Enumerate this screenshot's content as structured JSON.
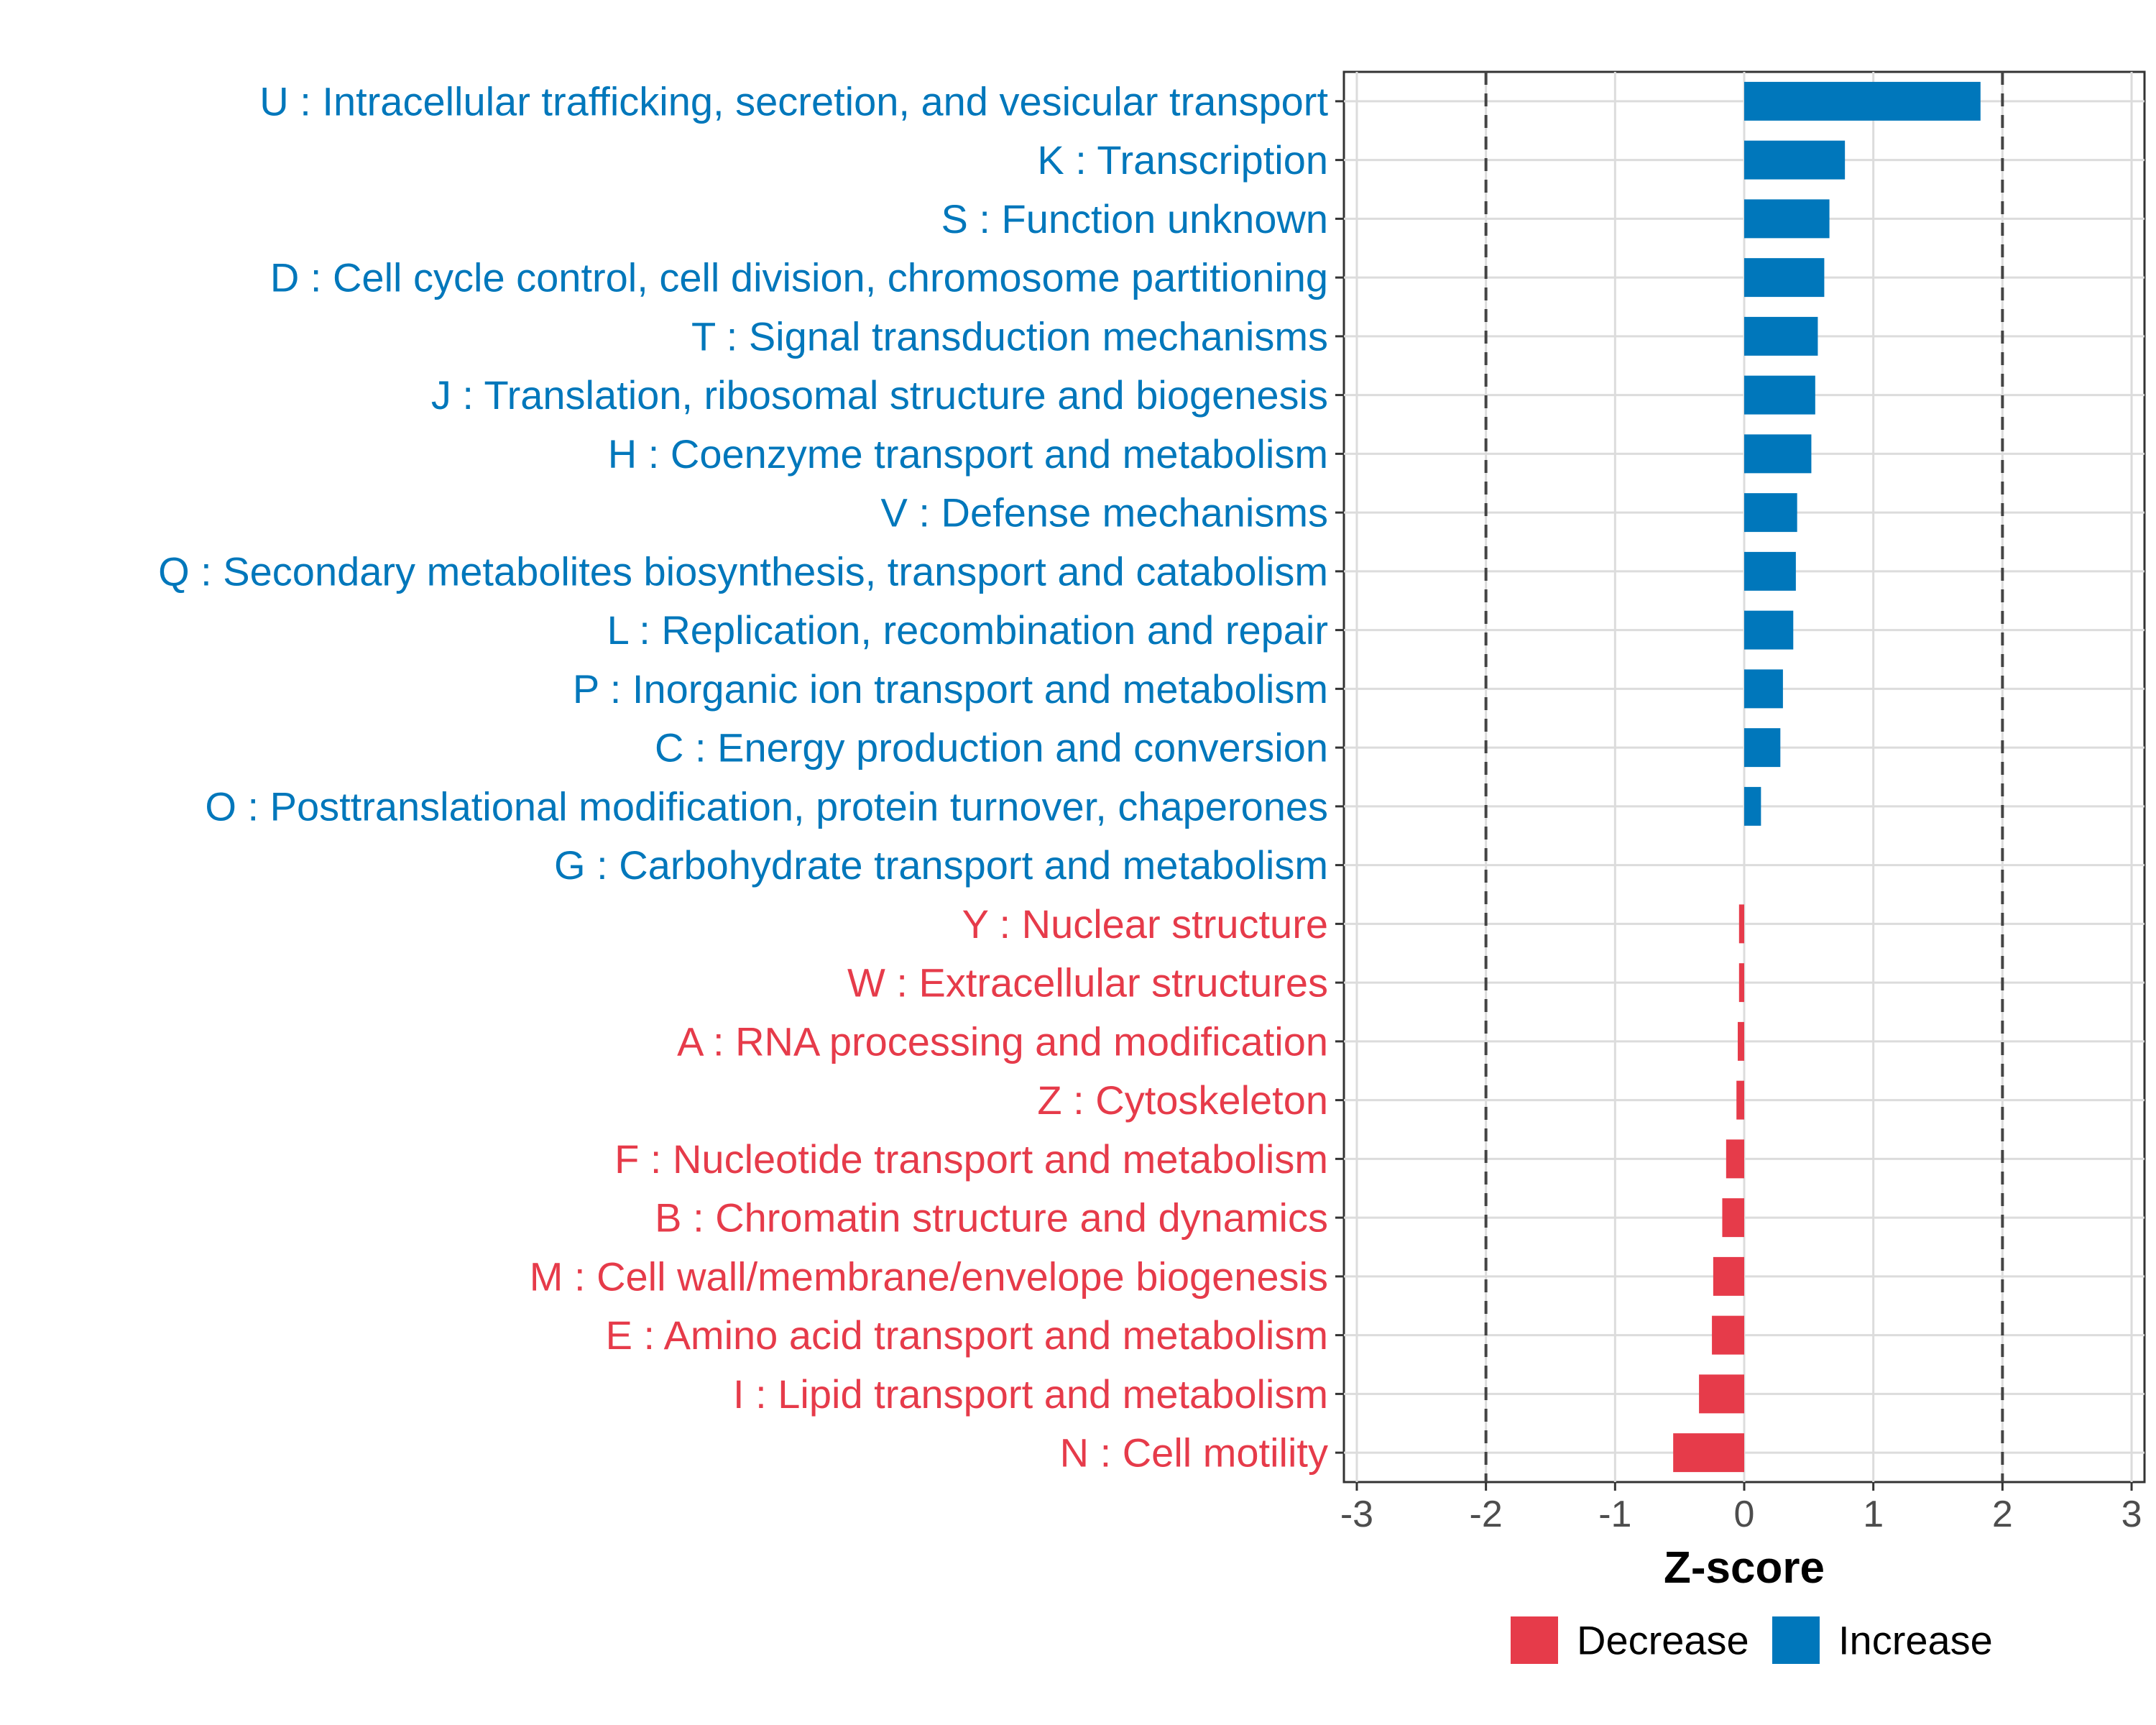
{
  "chart_data": {
    "type": "bar",
    "orientation": "horizontal",
    "title": "",
    "xlabel": "Z-score",
    "ylabel": "",
    "xlim": [
      -3.1,
      3.1
    ],
    "xticks": [
      -3,
      -2,
      -1,
      0,
      1,
      2,
      3
    ],
    "xtick_labels": [
      "-3",
      "-2",
      "-1",
      "0",
      "1",
      "2",
      "3"
    ],
    "reference_lines": [
      -2,
      2
    ],
    "grid": true,
    "legend_position": "bottom",
    "colors": {
      "Decrease": "#E63B4A",
      "Increase": "#0077BB"
    },
    "categories": [
      {
        "label": "U : Intracellular trafficking, secretion, and vesicular transport",
        "value": 1.83,
        "group": "Increase"
      },
      {
        "label": "K : Transcription",
        "value": 0.78,
        "group": "Increase"
      },
      {
        "label": "S : Function unknown",
        "value": 0.66,
        "group": "Increase"
      },
      {
        "label": "D : Cell cycle control, cell division, chromosome partitioning",
        "value": 0.62,
        "group": "Increase"
      },
      {
        "label": "T : Signal transduction mechanisms",
        "value": 0.57,
        "group": "Increase"
      },
      {
        "label": "J : Translation, ribosomal structure and biogenesis",
        "value": 0.55,
        "group": "Increase"
      },
      {
        "label": "H : Coenzyme transport and metabolism",
        "value": 0.52,
        "group": "Increase"
      },
      {
        "label": "V : Defense mechanisms",
        "value": 0.41,
        "group": "Increase"
      },
      {
        "label": "Q : Secondary metabolites biosynthesis, transport and catabolism",
        "value": 0.4,
        "group": "Increase"
      },
      {
        "label": "L : Replication, recombination and repair",
        "value": 0.38,
        "group": "Increase"
      },
      {
        "label": "P : Inorganic ion transport and metabolism",
        "value": 0.3,
        "group": "Increase"
      },
      {
        "label": "C : Energy production and conversion",
        "value": 0.28,
        "group": "Increase"
      },
      {
        "label": "O : Posttranslational modification, protein turnover, chaperones",
        "value": 0.13,
        "group": "Increase"
      },
      {
        "label": "G : Carbohydrate transport and metabolism",
        "value": 0.0,
        "group": "Increase"
      },
      {
        "label": "Y : Nuclear structure",
        "value": -0.04,
        "group": "Decrease"
      },
      {
        "label": "W : Extracellular structures",
        "value": -0.04,
        "group": "Decrease"
      },
      {
        "label": "A : RNA processing and modification",
        "value": -0.05,
        "group": "Decrease"
      },
      {
        "label": "Z : Cytoskeleton",
        "value": -0.06,
        "group": "Decrease"
      },
      {
        "label": "F : Nucleotide transport and metabolism",
        "value": -0.14,
        "group": "Decrease"
      },
      {
        "label": "B : Chromatin structure and dynamics",
        "value": -0.17,
        "group": "Decrease"
      },
      {
        "label": "M : Cell wall/membrane/envelope biogenesis",
        "value": -0.24,
        "group": "Decrease"
      },
      {
        "label": "E : Amino acid transport and metabolism",
        "value": -0.25,
        "group": "Decrease"
      },
      {
        "label": "I : Lipid transport and metabolism",
        "value": -0.35,
        "group": "Decrease"
      },
      {
        "label": "N : Cell motility",
        "value": -0.55,
        "group": "Decrease"
      }
    ],
    "legend": [
      {
        "label": "Decrease"
      },
      {
        "label": "Increase"
      }
    ]
  }
}
